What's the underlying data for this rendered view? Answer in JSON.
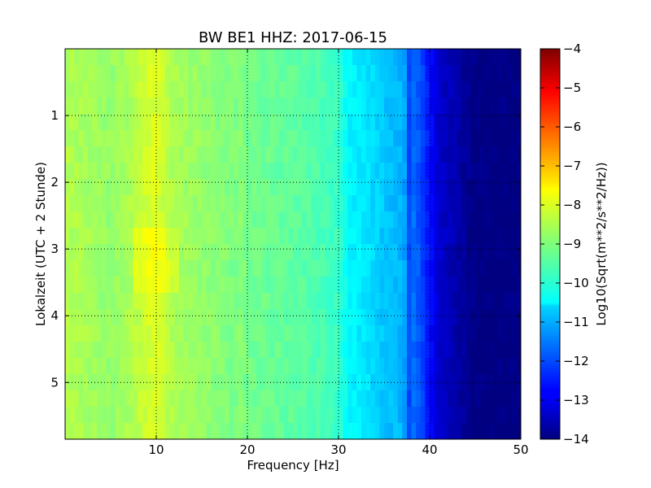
{
  "chart_data": {
    "type": "heatmap",
    "title": "BW BE1 HHZ: 2017-06-15",
    "xlabel": "Frequency [Hz]",
    "ylabel": "Lokalzeit (UTC + 2 Stunde)",
    "xlim": [
      0,
      50
    ],
    "ylim": [
      5.85,
      0.0
    ],
    "x_ticks": [
      10,
      20,
      30,
      40,
      50
    ],
    "x_tick_labels": [
      "10",
      "20",
      "30",
      "40",
      "50"
    ],
    "y_ticks": [
      1,
      2,
      3,
      4,
      5
    ],
    "y_tick_labels": [
      "1",
      "2",
      "3",
      "4",
      "5"
    ],
    "y_inverted": true,
    "grid": true,
    "grid_style": "dotted",
    "colormap": "jet",
    "colorbar": {
      "label": "Log10(Sqrt(m**2/s**2/Hz))",
      "range": [
        -14,
        -4
      ],
      "ticks": [
        -4,
        -5,
        -6,
        -7,
        -8,
        -9,
        -10,
        -11,
        -12,
        -13,
        -14
      ],
      "tick_labels": [
        "−4",
        "−5",
        "−6",
        "−7",
        "−8",
        "−9",
        "−10",
        "−11",
        "−12",
        "−13",
        "−14"
      ]
    },
    "spectrum_profile": {
      "frequency_hz": [
        0,
        2,
        5,
        7,
        9,
        10,
        12,
        15,
        18,
        20,
        22,
        25,
        28,
        30,
        31,
        33,
        35,
        37,
        38,
        39,
        40,
        41,
        42,
        43,
        44,
        45,
        50
      ],
      "log10_amplitude": [
        -8.5,
        -8.6,
        -8.8,
        -8.6,
        -8.2,
        -8.1,
        -8.6,
        -8.8,
        -9.0,
        -9.1,
        -9.2,
        -9.3,
        -9.5,
        -9.7,
        -10.3,
        -10.5,
        -10.8,
        -11.0,
        -11.6,
        -12.0,
        -12.6,
        -13.2,
        -13.4,
        -13.6,
        -13.8,
        -14.0,
        -14.0
      ]
    },
    "features": [
      {
        "frequency_hz": 37.5,
        "note": "narrow spectral line across all hours"
      },
      {
        "frequency_hz": 19.0,
        "note": "faint narrow line"
      },
      {
        "frequency_hz": 10.0,
        "note": "elevated energy band, strongest 2.7–3.5 h"
      }
    ]
  }
}
